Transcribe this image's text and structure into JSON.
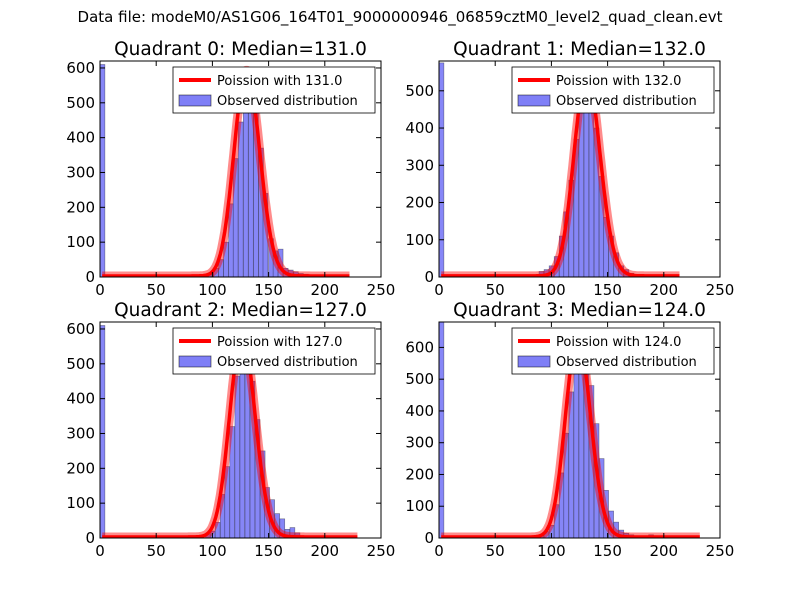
{
  "figure": {
    "suptitle": "Data file: modeM0/AS1G06_164T01_9000000946_06859cztM0_level2_quad_clean.evt"
  },
  "chart_data": [
    {
      "type": "bar",
      "title": "Quadrant 0: Median=131.0",
      "xlim": [
        0,
        250
      ],
      "ylim": [
        0,
        620
      ],
      "xticks": [
        0,
        50,
        100,
        150,
        200,
        250
      ],
      "yticks": [
        0,
        100,
        200,
        300,
        400,
        500,
        600
      ],
      "median": 131.0,
      "legend": {
        "location": "upper right",
        "line_label": "Poission with 131.0",
        "bar_label": "Observed distribution"
      },
      "line_color": "#ff0000",
      "bar_color": "#7f7ff7",
      "bars": {
        "bin_width": 4.36,
        "x": [
          0,
          92,
          96.5,
          101,
          105.5,
          110,
          114.5,
          118.5,
          123,
          127.5,
          132,
          136.5,
          141,
          145,
          150,
          154,
          158.5,
          163,
          167.5,
          172,
          176.5,
          181,
          185.5,
          190
        ],
        "counts": [
          610,
          5,
          10,
          25,
          50,
          100,
          210,
          340,
          445,
          555,
          590,
          500,
          370,
          240,
          110,
          75,
          80,
          25,
          20,
          15,
          10,
          8,
          5,
          3
        ]
      },
      "poisson": {
        "mean": 131.0,
        "x_start": 2,
        "x_end": 222
      }
    },
    {
      "type": "bar",
      "title": "Quadrant 1: Median=132.0",
      "xlim": [
        0,
        250
      ],
      "ylim": [
        0,
        580
      ],
      "xticks": [
        0,
        50,
        100,
        150,
        200,
        250
      ],
      "yticks": [
        0,
        100,
        200,
        300,
        400,
        500
      ],
      "median": 132.0,
      "legend": {
        "location": "upper right",
        "line_label": "Poission with 132.0",
        "bar_label": "Observed distribution"
      },
      "line_color": "#ff0000",
      "bar_color": "#7f7ff7",
      "bars": {
        "bin_width": 4.36,
        "x": [
          0,
          89,
          93.5,
          98,
          102.5,
          107,
          111,
          115.5,
          120,
          124.5,
          129,
          133.5,
          138,
          142.5,
          146.5,
          151,
          155.5,
          160,
          164.5,
          169,
          173.5
        ],
        "counts": [
          575,
          15,
          20,
          30,
          55,
          110,
          175,
          260,
          370,
          460,
          545,
          500,
          400,
          270,
          160,
          110,
          65,
          30,
          20,
          10,
          5
        ]
      },
      "poisson": {
        "mean": 132.0,
        "x_start": 2,
        "x_end": 214
      }
    },
    {
      "type": "bar",
      "title": "Quadrant 2: Median=127.0",
      "xlim": [
        0,
        250
      ],
      "ylim": [
        0,
        620
      ],
      "xticks": [
        0,
        50,
        100,
        150,
        200,
        250
      ],
      "yticks": [
        0,
        100,
        200,
        300,
        400,
        500,
        600
      ],
      "median": 127.0,
      "legend": {
        "location": "upper right",
        "line_label": "Poission with 127.0",
        "bar_label": "Observed distribution"
      },
      "line_color": "#ff0000",
      "bar_color": "#7f7ff7",
      "bars": {
        "bin_width": 4.36,
        "x": [
          0,
          76,
          85,
          94,
          98,
          102.5,
          107,
          111,
          115.5,
          120,
          124.5,
          129,
          133.5,
          138,
          142.5,
          146.5,
          151,
          155.5,
          160,
          164.5,
          169,
          173.5,
          178
        ],
        "counts": [
          610,
          3,
          5,
          10,
          20,
          45,
          125,
          205,
          320,
          465,
          575,
          580,
          450,
          340,
          250,
          145,
          110,
          70,
          55,
          25,
          30,
          15,
          5
        ]
      },
      "poisson": {
        "mean": 127.0,
        "x_start": 2,
        "x_end": 229
      }
    },
    {
      "type": "bar",
      "title": "Quadrant 3: Median=124.0",
      "xlim": [
        0,
        250
      ],
      "ylim": [
        0,
        680
      ],
      "xticks": [
        0,
        50,
        100,
        150,
        200,
        250
      ],
      "yticks": [
        0,
        100,
        200,
        300,
        400,
        500,
        600
      ],
      "median": 124.0,
      "legend": {
        "location": "upper right",
        "line_label": "Poission with 124.0",
        "bar_label": "Observed distribution"
      },
      "line_color": "#ff0000",
      "bar_color": "#7f7ff7",
      "bars": {
        "bin_width": 4.36,
        "x": [
          0,
          85,
          89,
          93.5,
          98,
          102.5,
          107,
          111,
          115.5,
          120,
          124.5,
          129,
          133.5,
          138,
          142.5,
          146.5,
          151,
          155.5,
          160,
          164.5,
          169,
          182,
          186.5,
          190
        ],
        "counts": [
          680,
          5,
          10,
          20,
          40,
          105,
          205,
          330,
          460,
          570,
          630,
          600,
          480,
          360,
          250,
          150,
          85,
          50,
          25,
          15,
          10,
          5,
          10,
          5
        ]
      },
      "poisson": {
        "mean": 124.0,
        "x_start": 2,
        "x_end": 232
      }
    }
  ]
}
